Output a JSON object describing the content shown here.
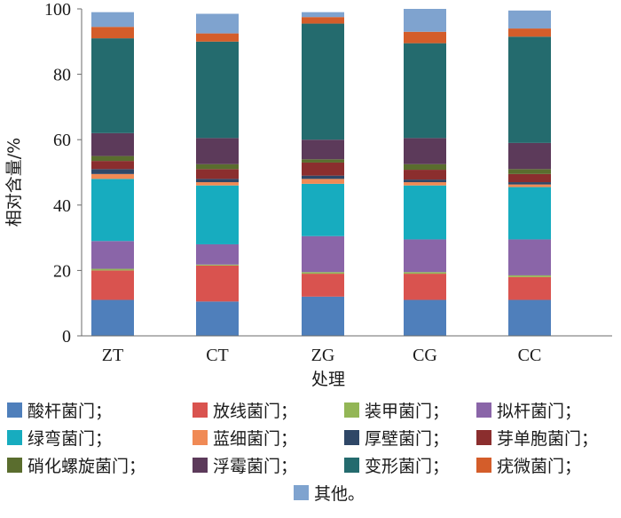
{
  "chart_data": {
    "type": "bar",
    "stacked": true,
    "xlabel": "处理",
    "ylabel": "相对含量/%",
    "ylim": [
      0,
      100
    ],
    "yticks": [
      0,
      20,
      40,
      60,
      80,
      100
    ],
    "categories": [
      "ZT",
      "CT",
      "ZG",
      "CG",
      "CC"
    ],
    "series": [
      {
        "name": "酸杆菌门；",
        "color": "#4f7fbb",
        "values": [
          11.0,
          10.5,
          12.0,
          11.0,
          11.0
        ]
      },
      {
        "name": "放线菌门；",
        "color": "#d9534f",
        "values": [
          9.0,
          11.0,
          7.0,
          8.0,
          7.0
        ]
      },
      {
        "name": "装甲菌门；",
        "color": "#93b656",
        "values": [
          0.5,
          0.3,
          0.5,
          0.5,
          0.5
        ]
      },
      {
        "name": "拟杆菌门；",
        "color": "#8a65a8",
        "values": [
          8.5,
          6.2,
          11.0,
          10.0,
          11.0
        ]
      },
      {
        "name": "绿弯菌门；",
        "color": "#17acbf",
        "values": [
          19.0,
          18.0,
          16.0,
          16.5,
          16.0
        ]
      },
      {
        "name": "蓝细菌门；",
        "color": "#f08a55",
        "values": [
          1.5,
          1.0,
          1.5,
          1.0,
          0.8
        ]
      },
      {
        "name": "厚壁菌门；",
        "color": "#2f4767",
        "values": [
          1.5,
          1.0,
          1.0,
          0.8,
          0.7
        ]
      },
      {
        "name": "芽单胞菌门；",
        "color": "#8b2e2e",
        "values": [
          2.5,
          3.0,
          4.0,
          3.0,
          2.5
        ]
      },
      {
        "name": "硝化螺旋菌门；",
        "color": "#5a6d2e",
        "values": [
          1.5,
          1.5,
          1.0,
          1.7,
          1.5
        ]
      },
      {
        "name": "浮霉菌门；",
        "color": "#5c3a5a",
        "values": [
          7.0,
          8.0,
          6.0,
          8.0,
          8.0
        ]
      },
      {
        "name": "变形菌门；",
        "color": "#246b6e",
        "values": [
          29.0,
          29.5,
          35.5,
          29.0,
          32.5
        ]
      },
      {
        "name": "疣微菌门；",
        "color": "#d45d2a",
        "values": [
          3.5,
          2.5,
          2.0,
          3.5,
          2.5
        ]
      },
      {
        "name": "其他。",
        "color": "#7fa3cf",
        "values": [
          4.5,
          6.0,
          1.5,
          7.0,
          5.5
        ]
      }
    ]
  }
}
